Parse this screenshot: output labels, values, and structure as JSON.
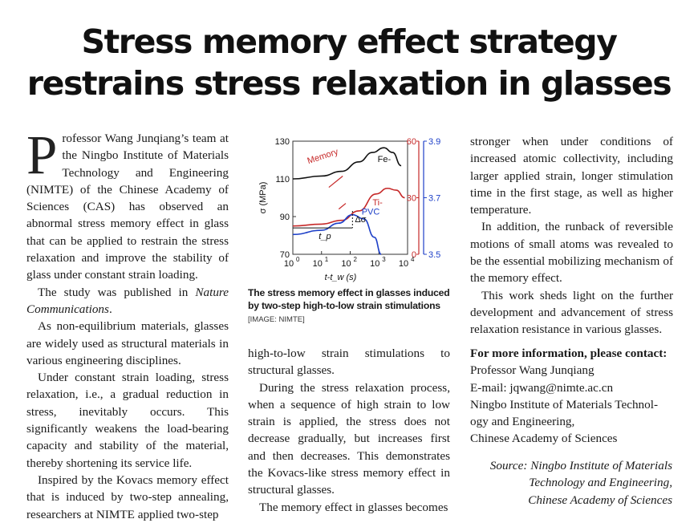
{
  "headline": {
    "line1": "Stress memory effect strategy",
    "line2": "restrains stress relaxation in glasses"
  },
  "col1": {
    "dropcap": "P",
    "p1": "rofessor Wang Junqiang’s team at the Ningbo Institute of Materials Technology and Engineering (NIMTE) of the Chinese Academy of Sciences (CAS) has observed an abnormal stress memory effect in glass that can be applied to restrain the stress relaxation and improve the stability of glass under constant strain loading.",
    "p2_pre": "The study was published in ",
    "p2_journal": "Nature Communications",
    "p2_post": ".",
    "p3": "As non-equilibrium materials, glasses are widely used as structural materials in various engineering disciplines.",
    "p4": "Under constant strain loading, stress relaxation, i.e., a gradual reduction in stress, inevitably occurs. This significantly weakens the load-bearing capacity and stability of the material, thereby shortening its service life.",
    "p5": "Inspired by the Kovacs memory effect that is induced by two-step annealing, researchers at NIMTE applied two-step"
  },
  "col2": {
    "p1": "high-to-low strain stimulations to structural glasses.",
    "p2": "During the stress relaxation process, when a sequence of high strain to low strain is applied, the stress does not decrease gradually, but increases first and then decreases. This demonstrates the Kovacs-like stress memory effect in structural glasses.",
    "p3": "The memory effect in glasses becomes"
  },
  "col3": {
    "p1": "stronger when under conditions of increased atomic collectivity, including larger applied strain, longer stimulation time in the first stage, as well as higher temperature.",
    "p2": "In addition, the runback of reversible motions of small atoms was revealed to be the essential mobilizing mechanism of the memory effect.",
    "p3": "This work sheds light on the further development and advancement of stress relaxation resistance in various glasses."
  },
  "contact": {
    "heading": "For more information, please contact:",
    "name": "Professor Wang Junqiang",
    "email": "E-mail: jqwang@nimte.ac.cn",
    "org1": "Ningbo Institute of Materials Technol-",
    "org2": "ogy and Engineering,",
    "org3": "Chinese Academy of Sciences"
  },
  "source": {
    "line1": "Source: Ningbo Institute of Materials",
    "line2": "Technology and Engineering,",
    "line3": "Chinese Academy of Sciences"
  },
  "figure": {
    "caption": "The stress memory effect in glasses induced by two-step high-to-low strain stimulations",
    "credit": "[IMAGE: NIMTE]"
  },
  "chart_data": {
    "type": "line",
    "xlabel": "t-t_w (s)",
    "ylabel": "σ (MPa)",
    "x_scale": "log",
    "xlim_exponents": [
      0,
      4
    ],
    "x_tick_labels": [
      "10^0",
      "10^1",
      "10^2",
      "10^3",
      "10^4"
    ],
    "y_left_ticks": [
      "70",
      "90",
      "110",
      "130"
    ],
    "y_right_red_ticks": [
      "0",
      "30",
      "60"
    ],
    "y_right_blue_ticks": [
      "3.5",
      "3.7",
      "3.9"
    ],
    "annotations": [
      "Memory",
      "Δσ",
      "t_p"
    ],
    "colors": {
      "Fe-": "#111111",
      "Ti-": "#c62828",
      "PVC": "#1e40c8"
    },
    "series": [
      {
        "name": "Fe-",
        "axis": "left",
        "x": [
          1,
          10,
          50,
          200,
          600,
          1500,
          3000,
          6000
        ],
        "y": [
          110,
          111.5,
          114,
          119,
          124,
          126.5,
          124,
          117
        ]
      },
      {
        "name": "Ti-",
        "axis": "right-red",
        "x": [
          1,
          10,
          50,
          200,
          800,
          2000,
          4000,
          8000
        ],
        "y": [
          15,
          16,
          18,
          23,
          32,
          35,
          34,
          30
        ]
      },
      {
        "name": "PVC",
        "axis": "right-blue",
        "x": [
          1,
          10,
          40,
          120,
          300,
          700,
          1200
        ],
        "y": [
          3.57,
          3.585,
          3.61,
          3.64,
          3.625,
          3.56,
          3.5
        ]
      }
    ]
  }
}
